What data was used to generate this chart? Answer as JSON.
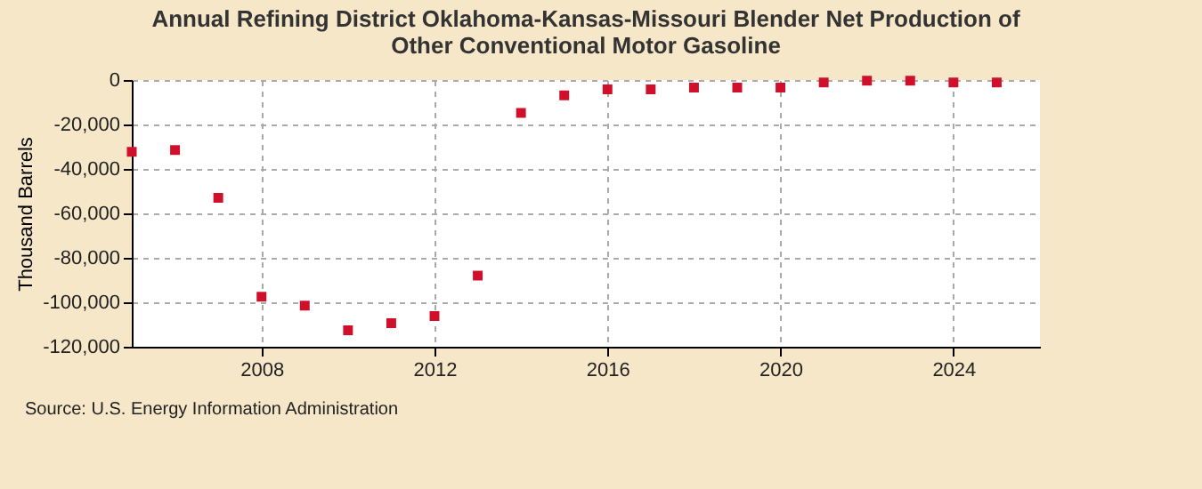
{
  "chart_data": {
    "type": "scatter",
    "title": "Annual Refining District Oklahoma-Kansas-Missouri Blender Net Production of Other Conventional Motor Gasoline",
    "ylabel": "Thousand Barrels",
    "annotations": [
      "Source: U.S. Energy Information Administration"
    ],
    "x": [
      2005,
      2006,
      2007,
      2008,
      2009,
      2010,
      2011,
      2012,
      2013,
      2014,
      2015,
      2016,
      2017,
      2018,
      2019,
      2020,
      2021,
      2022,
      2023,
      2024,
      2025
    ],
    "series": [
      {
        "color": "#d0102a",
        "values": [
          -32300,
          -31500,
          -53000,
          -97500,
          -101500,
          -112600,
          -109400,
          -106200,
          -88000,
          -14800,
          -6900,
          -4200,
          -4200,
          -3400,
          -3400,
          -3400,
          -1100,
          -300,
          -300,
          -1100,
          -1100
        ]
      }
    ],
    "xlim": [
      2005,
      2026
    ],
    "xticks": [
      2008,
      2012,
      2016,
      2020,
      2024
    ],
    "ylim": [
      -120000,
      0
    ],
    "yticks": [
      {
        "value": -120000,
        "label": "-120,000"
      },
      {
        "value": -100000,
        "label": "-100,000"
      },
      {
        "value": -80000,
        "label": "-80,000"
      },
      {
        "value": -60000,
        "label": "-60,000"
      },
      {
        "value": -40000,
        "label": "-40,000"
      },
      {
        "value": -20000,
        "label": "-20,000"
      },
      0
    ],
    "grid": true,
    "marker": "square",
    "legend": false
  }
}
